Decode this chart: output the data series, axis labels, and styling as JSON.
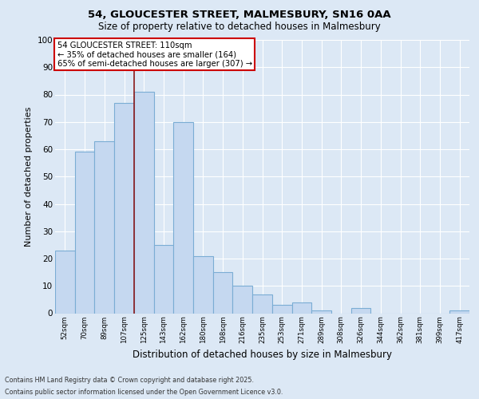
{
  "title1": "54, GLOUCESTER STREET, MALMESBURY, SN16 0AA",
  "title2": "Size of property relative to detached houses in Malmesbury",
  "xlabel": "Distribution of detached houses by size in Malmesbury",
  "ylabel": "Number of detached properties",
  "categories": [
    "52sqm",
    "70sqm",
    "89sqm",
    "107sqm",
    "125sqm",
    "143sqm",
    "162sqm",
    "180sqm",
    "198sqm",
    "216sqm",
    "235sqm",
    "253sqm",
    "271sqm",
    "289sqm",
    "308sqm",
    "326sqm",
    "344sqm",
    "362sqm",
    "381sqm",
    "399sqm",
    "417sqm"
  ],
  "values": [
    23,
    59,
    63,
    77,
    81,
    25,
    70,
    21,
    15,
    10,
    7,
    3,
    4,
    1,
    0,
    2,
    0,
    0,
    0,
    0,
    1
  ],
  "bar_color": "#c5d8f0",
  "bar_edge_color": "#7badd4",
  "background_color": "#dce8f5",
  "grid_color": "#ffffff",
  "vline_color": "#8b1a1a",
  "vline_position": 3.5,
  "annotation_title": "54 GLOUCESTER STREET: 110sqm",
  "annotation_line1": "← 35% of detached houses are smaller (164)",
  "annotation_line2": "65% of semi-detached houses are larger (307) →",
  "annotation_box_color": "#ffffff",
  "annotation_box_edge": "#cc0000",
  "ylim": [
    0,
    100
  ],
  "yticks": [
    0,
    10,
    20,
    30,
    40,
    50,
    60,
    70,
    80,
    90,
    100
  ],
  "footer1": "Contains HM Land Registry data © Crown copyright and database right 2025.",
  "footer2": "Contains public sector information licensed under the Open Government Licence v3.0."
}
